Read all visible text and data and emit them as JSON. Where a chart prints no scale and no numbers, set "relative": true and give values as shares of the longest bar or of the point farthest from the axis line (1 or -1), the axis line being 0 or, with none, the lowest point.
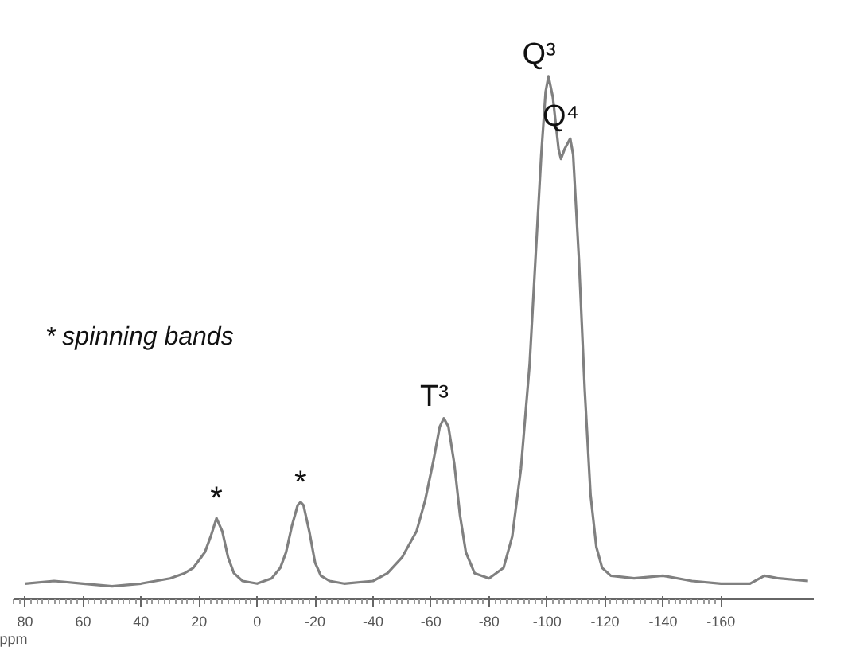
{
  "chart_data": {
    "type": "line",
    "relative": true,
    "xlabel": "ppm",
    "xlim": [
      84,
      -192
    ],
    "xticks": [
      80,
      60,
      40,
      20,
      0,
      -20,
      -40,
      -60,
      -80,
      -100,
      -120,
      -140,
      -160
    ],
    "tick_labels": "x",
    "grid": false,
    "marker": "none",
    "line_style": "solid",
    "series": [
      {
        "color": "#808080",
        "x": [
          80,
          70,
          60,
          50,
          40,
          30,
          25,
          22,
          20,
          18,
          16,
          14,
          12,
          10,
          8,
          5,
          0,
          -5,
          -8,
          -10,
          -12,
          -14,
          -15,
          -16,
          -18,
          -20,
          -22,
          -25,
          -30,
          -40,
          -45,
          -50,
          -55,
          -58,
          -61,
          -63,
          -64.4,
          -66,
          -68,
          -70,
          -72,
          -75,
          -80,
          -85,
          -88,
          -91,
          -94,
          -96,
          -98,
          -99.5,
          -100.5,
          -102,
          -104,
          -104.8,
          -106,
          -108,
          -109,
          -111,
          -113,
          -115,
          -117,
          -119,
          -122,
          -130,
          -140,
          -150,
          -160,
          -170,
          -175,
          -180,
          -190
        ],
        "values": [
          0.03,
          0.035,
          0.03,
          0.025,
          0.03,
          0.04,
          0.05,
          0.06,
          0.075,
          0.09,
          0.12,
          0.155,
          0.13,
          0.08,
          0.05,
          0.035,
          0.03,
          0.04,
          0.06,
          0.09,
          0.14,
          0.18,
          0.186,
          0.18,
          0.13,
          0.07,
          0.045,
          0.035,
          0.03,
          0.035,
          0.05,
          0.08,
          0.13,
          0.19,
          0.27,
          0.33,
          0.346,
          0.33,
          0.26,
          0.16,
          0.09,
          0.05,
          0.04,
          0.06,
          0.12,
          0.25,
          0.45,
          0.65,
          0.85,
          0.97,
          1.0,
          0.96,
          0.86,
          0.842,
          0.86,
          0.881,
          0.85,
          0.65,
          0.4,
          0.2,
          0.1,
          0.06,
          0.045,
          0.04,
          0.045,
          0.035,
          0.03,
          0.03,
          0.045,
          0.04,
          0.035
        ]
      }
    ],
    "annotations": [
      "* spinning bands",
      {
        "text": "*",
        "x": 14,
        "y": 0.155
      },
      {
        "text": "*",
        "x": -15,
        "y": 0.186
      },
      {
        "text": "T³",
        "x": -64.4,
        "y": 0.346
      },
      {
        "text": "Q³",
        "x": -100.5,
        "y": 1.0
      },
      {
        "text": "Q⁴",
        "x": -108,
        "y": 0.881
      }
    ]
  }
}
